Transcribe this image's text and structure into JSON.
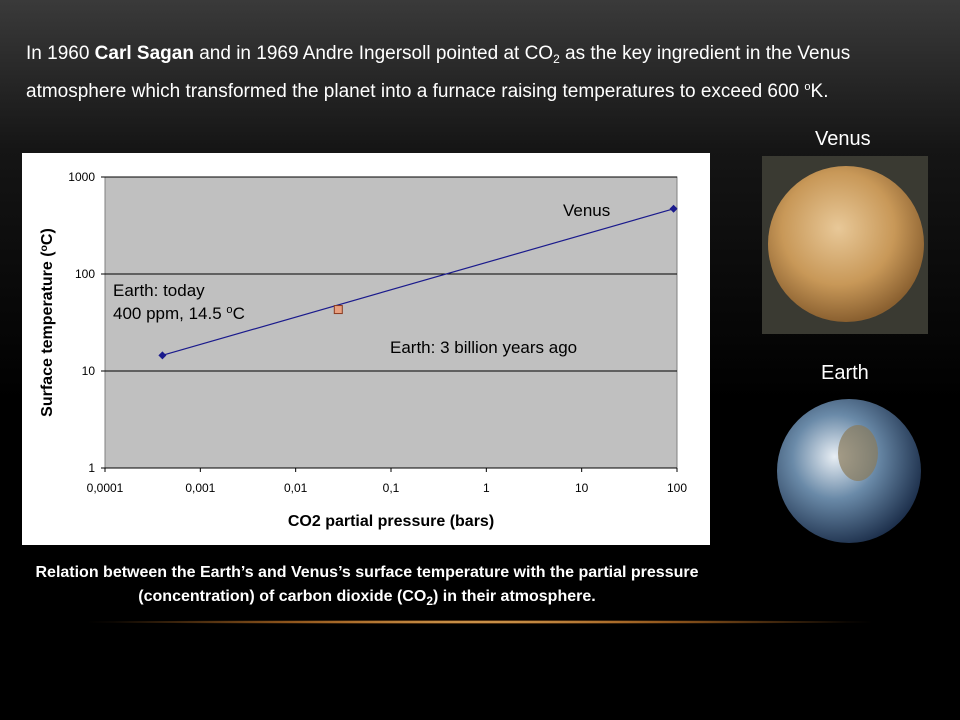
{
  "heading": {
    "parts": [
      "In 1960 ",
      "Carl Sagan",
      " and in 1969 Andre Ingersoll pointed at CO",
      "2",
      " as the key ingredient in the Venus",
      "atmosphere which transformed the planet into a furnace raising temperatures to exceed 600 ",
      "o",
      "K."
    ]
  },
  "caption": {
    "parts": [
      "Relation between the Earth’s and Venus’s surface temperature with the partial pressure",
      "(concentration) of carbon dioxide (CO",
      "2",
      ")  in their atmosphere."
    ]
  },
  "images": [
    {
      "label": "Venus"
    },
    {
      "label": "Earth"
    }
  ],
  "chart_data": {
    "type": "line",
    "y_label_parts": [
      "Surface temperature (",
      "o",
      "C)"
    ],
    "x_label": "CO2 partial pressure (bars)",
    "series": [
      {
        "color": "#1a1a8c",
        "x": [
          0.0004,
          92
        ],
        "values": [
          14.5,
          470
        ]
      },
      {
        "color": "#e8a080",
        "x": [
          0.028
        ],
        "values": [
          43
        ]
      }
    ],
    "xlim": [
      0.0001,
      100
    ],
    "ylim": [
      1,
      1000
    ],
    "log_x": true,
    "log_y": true,
    "xticks": [
      {
        "value": 0.0001,
        "label": "0,0001"
      },
      {
        "value": 0.001,
        "label": "0,001"
      },
      {
        "value": 0.01,
        "label": "0,01"
      },
      {
        "value": 0.1,
        "label": "0,1"
      },
      1,
      10,
      100
    ],
    "yticks": [
      1,
      10,
      100,
      1000
    ],
    "grid": true,
    "annotations": [
      {
        "parts": [
          "Venus"
        ]
      },
      {
        "parts": [
          "Earth:  today"
        ]
      },
      {
        "parts": [
          "400 ppm, 14.5 ",
          "o",
          "C"
        ]
      },
      {
        "parts": [
          "Earth: 3 billion years ago"
        ]
      }
    ]
  }
}
